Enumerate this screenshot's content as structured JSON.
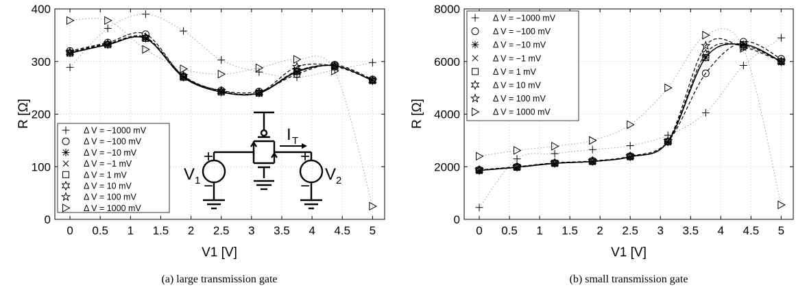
{
  "figure": {
    "panels": [
      {
        "caption": "(a)  large transmission gate",
        "ylabel": "R [Ω]",
        "xlabel": "V1 [V]",
        "yticks": [
          "0",
          "100",
          "200",
          "300",
          "400"
        ],
        "xticks": [
          "0",
          "0.5",
          "1",
          "1.5",
          "2",
          "2.5",
          "3",
          "3.5",
          "4",
          "4.5",
          "5"
        ],
        "legend": [
          "Δ V = −1000 mV",
          "Δ V = −100 mV",
          "Δ V = −10 mV",
          "Δ V = −1 mV",
          "Δ V = 1 mV",
          "Δ V = 10 mV",
          "Δ V = 100 mV",
          "Δ V = 1000 mV"
        ],
        "circuit": {
          "v1": "V",
          "v1_sub": "1",
          "v2": "V",
          "v2_sub": "2",
          "it": "I",
          "it_sub": "T",
          "plus": "+",
          "minus": "−"
        }
      },
      {
        "caption": "(b)  small transmission gate",
        "ylabel": "R [Ω]",
        "xlabel": "V1 [V]",
        "yticks": [
          "0",
          "2000",
          "4000",
          "6000",
          "8000"
        ],
        "xticks": [
          "0",
          "0.5",
          "1",
          "1.5",
          "2",
          "2.5",
          "3",
          "3.5",
          "4",
          "4.5",
          "5"
        ],
        "legend": [
          "Δ V = −1000 mV",
          "Δ V = −100 mV",
          "Δ V = −10 mV",
          "Δ V = −1 mV",
          "Δ V = 1 mV",
          "Δ V = 10 mV",
          "Δ V = 100 mV",
          "Δ V = 1000 mV"
        ]
      }
    ]
  },
  "chart_data": [
    {
      "type": "line",
      "xlabel": "V1 [V]",
      "ylabel": "R [Ω]",
      "xlim": [
        -0.25,
        5.2
      ],
      "ylim": [
        0,
        400
      ],
      "grid": true,
      "legend_position": "bottom-left",
      "x": [
        0,
        0.625,
        1.25,
        1.875,
        2.5,
        3.125,
        3.75,
        4.375,
        5
      ],
      "series": [
        {
          "name": "Δ V = −1000 mV",
          "marker": "plus",
          "values": [
            289,
            363,
            390,
            358,
            303,
            280,
            270,
            284,
            298
          ]
        },
        {
          "name": "Δ V = −100 mV",
          "marker": "circle",
          "values": [
            320,
            336,
            352,
            272,
            245,
            243,
            276,
            294,
            266
          ]
        },
        {
          "name": "Δ V = −10 mV",
          "marker": "asterisk",
          "values": [
            316,
            332,
            344,
            270,
            242,
            240,
            280,
            292,
            264
          ]
        },
        {
          "name": "Δ V = −1 mV",
          "marker": "x",
          "values": [
            316,
            332,
            344,
            270,
            242,
            240,
            281,
            292,
            264
          ]
        },
        {
          "name": "Δ V = 1 mV",
          "marker": "square",
          "values": [
            316,
            332,
            344,
            270,
            242,
            240,
            281,
            292,
            264
          ]
        },
        {
          "name": "Δ V = 10 mV",
          "marker": "hexagram",
          "values": [
            317,
            333,
            345,
            271,
            243,
            241,
            282,
            292,
            264
          ]
        },
        {
          "name": "Δ V = 100 mV",
          "marker": "pentagram",
          "values": [
            318,
            334,
            346,
            273,
            244,
            241,
            290,
            291,
            264
          ]
        },
        {
          "name": "Δ V = 1000 mV",
          "marker": "triangle-right",
          "values": [
            378,
            378,
            323,
            286,
            276,
            288,
            304,
            282,
            25
          ]
        }
      ]
    },
    {
      "type": "line",
      "xlabel": "V1 [V]",
      "ylabel": "R [Ω]",
      "xlim": [
        -0.25,
        5.2
      ],
      "ylim": [
        0,
        8000
      ],
      "grid": true,
      "legend_position": "top-left",
      "x": [
        0,
        0.625,
        1.25,
        1.875,
        2.5,
        3.125,
        3.75,
        4.375,
        5
      ],
      "series": [
        {
          "name": "Δ V = −1000 mV",
          "marker": "plus",
          "values": [
            450,
            2300,
            2500,
            2650,
            2800,
            3200,
            4050,
            5850,
            6900
          ]
        },
        {
          "name": "Δ V = −100 mV",
          "marker": "circle",
          "values": [
            1880,
            2000,
            2140,
            2220,
            2400,
            2950,
            5550,
            6750,
            6100
          ]
        },
        {
          "name": "Δ V = −10 mV",
          "marker": "asterisk",
          "values": [
            1860,
            1980,
            2130,
            2200,
            2380,
            2950,
            6150,
            6650,
            6000
          ]
        },
        {
          "name": "Δ V = −1 mV",
          "marker": "x",
          "values": [
            1860,
            1980,
            2130,
            2200,
            2380,
            2950,
            6150,
            6650,
            6000
          ]
        },
        {
          "name": "Δ V = 1 mV",
          "marker": "square",
          "values": [
            1860,
            1980,
            2130,
            2200,
            2380,
            2950,
            6150,
            6650,
            6000
          ]
        },
        {
          "name": "Δ V = 10 mV",
          "marker": "hexagram",
          "values": [
            1870,
            1990,
            2140,
            2210,
            2390,
            2960,
            6300,
            6600,
            6000
          ]
        },
        {
          "name": "Δ V = 100 mV",
          "marker": "pentagram",
          "values": [
            1880,
            2000,
            2150,
            2220,
            2400,
            2980,
            6600,
            6550,
            6000
          ]
        },
        {
          "name": "Δ V = 1000 mV",
          "marker": "triangle-right",
          "values": [
            2400,
            2620,
            2780,
            3000,
            3600,
            5000,
            7000,
            6500,
            550
          ]
        }
      ]
    }
  ]
}
